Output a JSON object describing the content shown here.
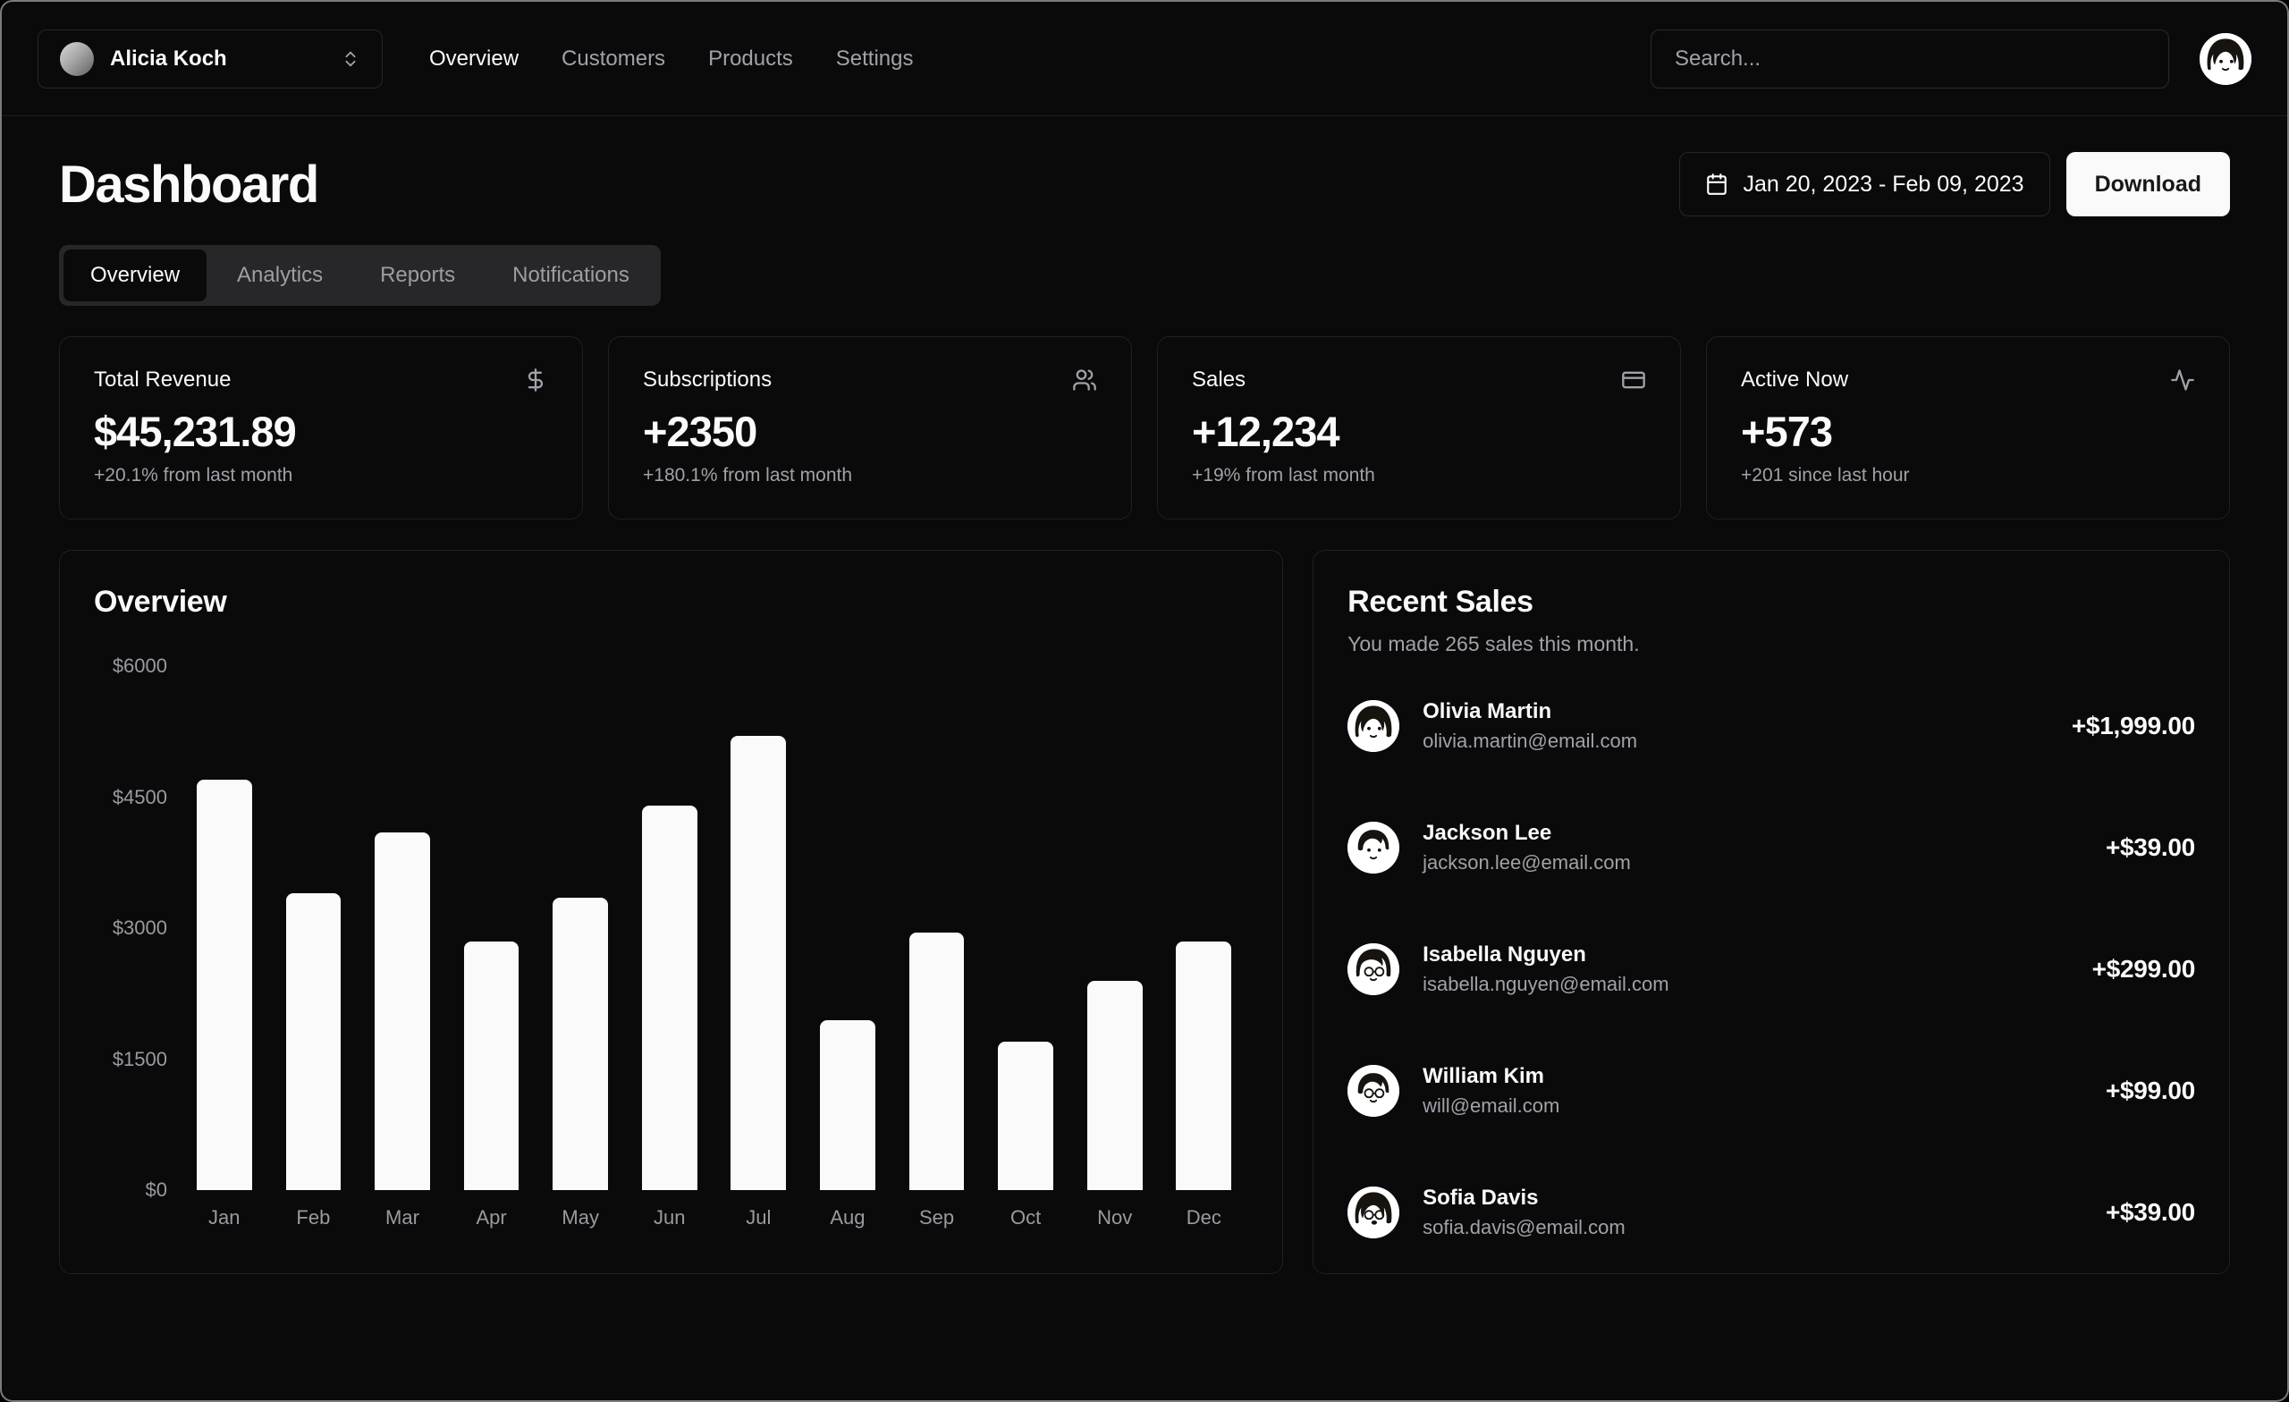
{
  "header": {
    "team_switcher": {
      "name": "Alicia Koch"
    },
    "nav": [
      {
        "label": "Overview",
        "active": true
      },
      {
        "label": "Customers",
        "active": false
      },
      {
        "label": "Products",
        "active": false
      },
      {
        "label": "Settings",
        "active": false
      }
    ],
    "search": {
      "placeholder": "Search..."
    }
  },
  "page": {
    "title": "Dashboard",
    "date_range": "Jan 20, 2023 - Feb 09, 2023",
    "download_label": "Download",
    "tabs": [
      {
        "label": "Overview",
        "active": true
      },
      {
        "label": "Analytics",
        "active": false
      },
      {
        "label": "Reports",
        "active": false
      },
      {
        "label": "Notifications",
        "active": false
      }
    ]
  },
  "stats": {
    "cards": [
      {
        "title": "Total Revenue",
        "icon": "dollar-sign-icon",
        "value": "$45,231.89",
        "change": "+20.1% from last month"
      },
      {
        "title": "Subscriptions",
        "icon": "users-icon",
        "value": "+2350",
        "change": "+180.1% from last month"
      },
      {
        "title": "Sales",
        "icon": "credit-card-icon",
        "value": "+12,234",
        "change": "+19% from last month"
      },
      {
        "title": "Active Now",
        "icon": "activity-icon",
        "value": "+573",
        "change": "+201 since last hour"
      }
    ]
  },
  "chart_data": {
    "type": "bar",
    "title": "Overview",
    "categories": [
      "Jan",
      "Feb",
      "Mar",
      "Apr",
      "May",
      "Jun",
      "Jul",
      "Aug",
      "Sep",
      "Oct",
      "Nov",
      "Dec"
    ],
    "values": [
      4700,
      3400,
      4100,
      2850,
      3350,
      4400,
      5200,
      1950,
      2950,
      1700,
      2400,
      2850
    ],
    "yticks": [
      {
        "label": "$6000",
        "value": 6000
      },
      {
        "label": "$4500",
        "value": 4500
      },
      {
        "label": "$3000",
        "value": 3000
      },
      {
        "label": "$1500",
        "value": 1500
      },
      {
        "label": "$0",
        "value": 0
      }
    ],
    "ylim": [
      0,
      6000
    ],
    "xlabel": "",
    "ylabel": "",
    "grid": false,
    "legend": false,
    "bar_color": "#fafafa"
  },
  "recent_sales": {
    "title": "Recent Sales",
    "subtitle": "You made 265 sales this month.",
    "items": [
      {
        "name": "Olivia Martin",
        "email": "olivia.martin@email.com",
        "amount": "+$1,999.00",
        "avatar": "avatar-olivia"
      },
      {
        "name": "Jackson Lee",
        "email": "jackson.lee@email.com",
        "amount": "+$39.00",
        "avatar": "avatar-jackson"
      },
      {
        "name": "Isabella Nguyen",
        "email": "isabella.nguyen@email.com",
        "amount": "+$299.00",
        "avatar": "avatar-isabella"
      },
      {
        "name": "William Kim",
        "email": "will@email.com",
        "amount": "+$99.00",
        "avatar": "avatar-william"
      },
      {
        "name": "Sofia Davis",
        "email": "sofia.davis@email.com",
        "amount": "+$39.00",
        "avatar": "avatar-sofia"
      }
    ]
  },
  "colors": {
    "background": "#0a0a0a",
    "card_border": "#202024",
    "input_border": "#27272a",
    "foreground": "#fafafa",
    "muted": "#a1a1aa",
    "tab_container_bg": "#27272a",
    "active_tab_bg": "#0a0a0a",
    "bar_fill": "#fafafa",
    "download_bg": "#fafafa",
    "download_fg": "#18181b"
  }
}
